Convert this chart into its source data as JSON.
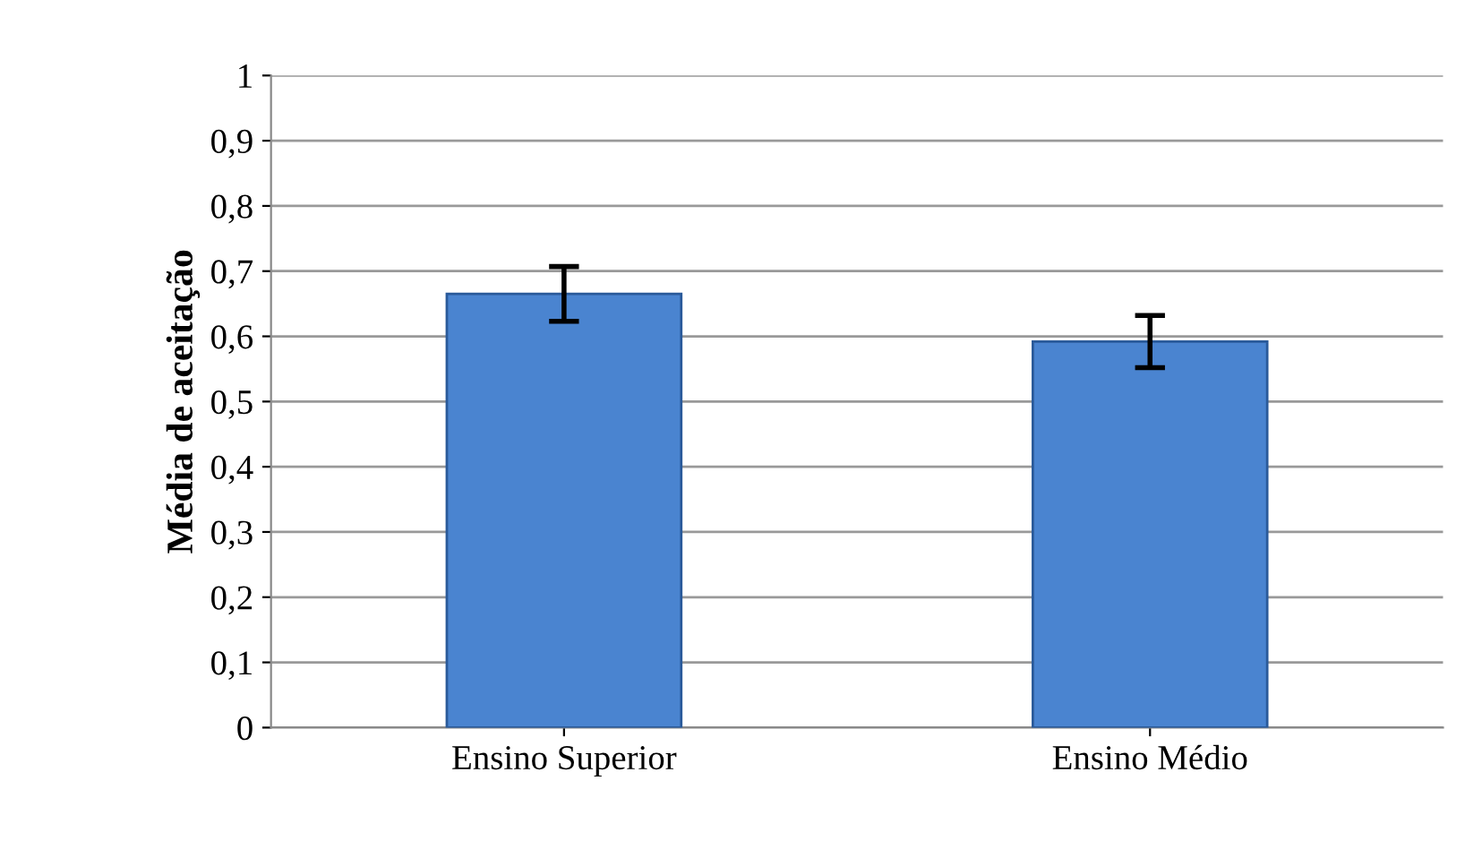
{
  "chart_data": {
    "type": "bar",
    "ylabel": "Média de aceitação",
    "categories": [
      "Ensino Superior",
      "Ensino Médio"
    ],
    "values": [
      0.665,
      0.592
    ],
    "errors": [
      0.042,
      0.04
    ],
    "color": "#4a84d0",
    "ylim": [
      0,
      1
    ],
    "yticks": [
      {
        "value": 0,
        "label": "0"
      },
      {
        "value": 0.1,
        "label": "0,1"
      },
      {
        "value": 0.2,
        "label": "0,2"
      },
      {
        "value": 0.3,
        "label": "0,3"
      },
      {
        "value": 0.4,
        "label": "0,4"
      },
      {
        "value": 0.5,
        "label": "0,5"
      },
      {
        "value": 0.6,
        "label": "0,6"
      },
      {
        "value": 0.7,
        "label": "0,7"
      },
      {
        "value": 0.8,
        "label": "0,8"
      },
      {
        "value": 0.9,
        "label": "0,9"
      },
      {
        "value": 1,
        "label": "1"
      }
    ],
    "grid": "y"
  }
}
